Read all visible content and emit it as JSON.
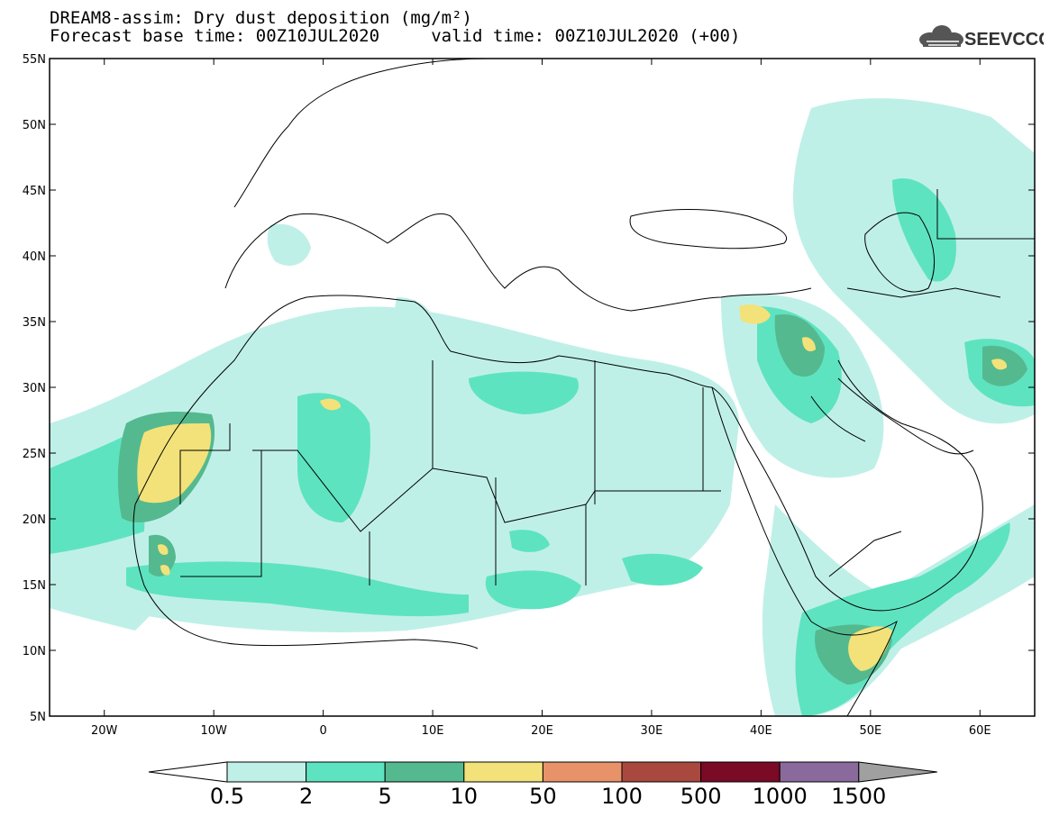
{
  "title": {
    "line1": "DREAM8-assim: Dry dust deposition (mg/m²)",
    "line2": "Forecast base time: 00Z10JUL2020     valid time: 00Z10JUL2020 (+00)"
  },
  "logo": {
    "text": "SEEVCCC",
    "icon": "cloud-icon"
  },
  "map": {
    "lon_range": [
      -25,
      65
    ],
    "lat_range": [
      5,
      55
    ],
    "lat_ticks": [
      {
        "value": 55,
        "label": "55N"
      },
      {
        "value": 50,
        "label": "50N"
      },
      {
        "value": 45,
        "label": "45N"
      },
      {
        "value": 40,
        "label": "40N"
      },
      {
        "value": 35,
        "label": "35N"
      },
      {
        "value": 30,
        "label": "30N"
      },
      {
        "value": 25,
        "label": "25N"
      },
      {
        "value": 20,
        "label": "20N"
      },
      {
        "value": 15,
        "label": "15N"
      },
      {
        "value": 10,
        "label": "10N"
      },
      {
        "value": 5,
        "label": "5N"
      }
    ],
    "lon_ticks": [
      {
        "value": -20,
        "label": "20W"
      },
      {
        "value": -10,
        "label": "10W"
      },
      {
        "value": 0,
        "label": "0"
      },
      {
        "value": 10,
        "label": "10E"
      },
      {
        "value": 20,
        "label": "20E"
      },
      {
        "value": 30,
        "label": "30E"
      },
      {
        "value": 40,
        "label": "40E"
      },
      {
        "value": 50,
        "label": "50E"
      },
      {
        "value": 60,
        "label": "60E"
      }
    ],
    "colors": {
      "land": "#ffffff",
      "coast": "#000000",
      "levels": [
        "#bff0e8",
        "#5ee3c0",
        "#55b98f",
        "#f3e27a",
        "#e8926a",
        "#a9483f",
        "#7a0a25",
        "#8a6a9c",
        "#a0a0a0"
      ]
    }
  },
  "colorbar": {
    "labels": [
      "0.5",
      "2",
      "5",
      "10",
      "50",
      "100",
      "500",
      "1000",
      "1500"
    ],
    "colors": [
      "#bff0e8",
      "#5ee3c0",
      "#55b98f",
      "#f3e27a",
      "#e8926a",
      "#a9483f",
      "#7a0a25",
      "#8a6a9c",
      "#a0a0a0"
    ]
  }
}
